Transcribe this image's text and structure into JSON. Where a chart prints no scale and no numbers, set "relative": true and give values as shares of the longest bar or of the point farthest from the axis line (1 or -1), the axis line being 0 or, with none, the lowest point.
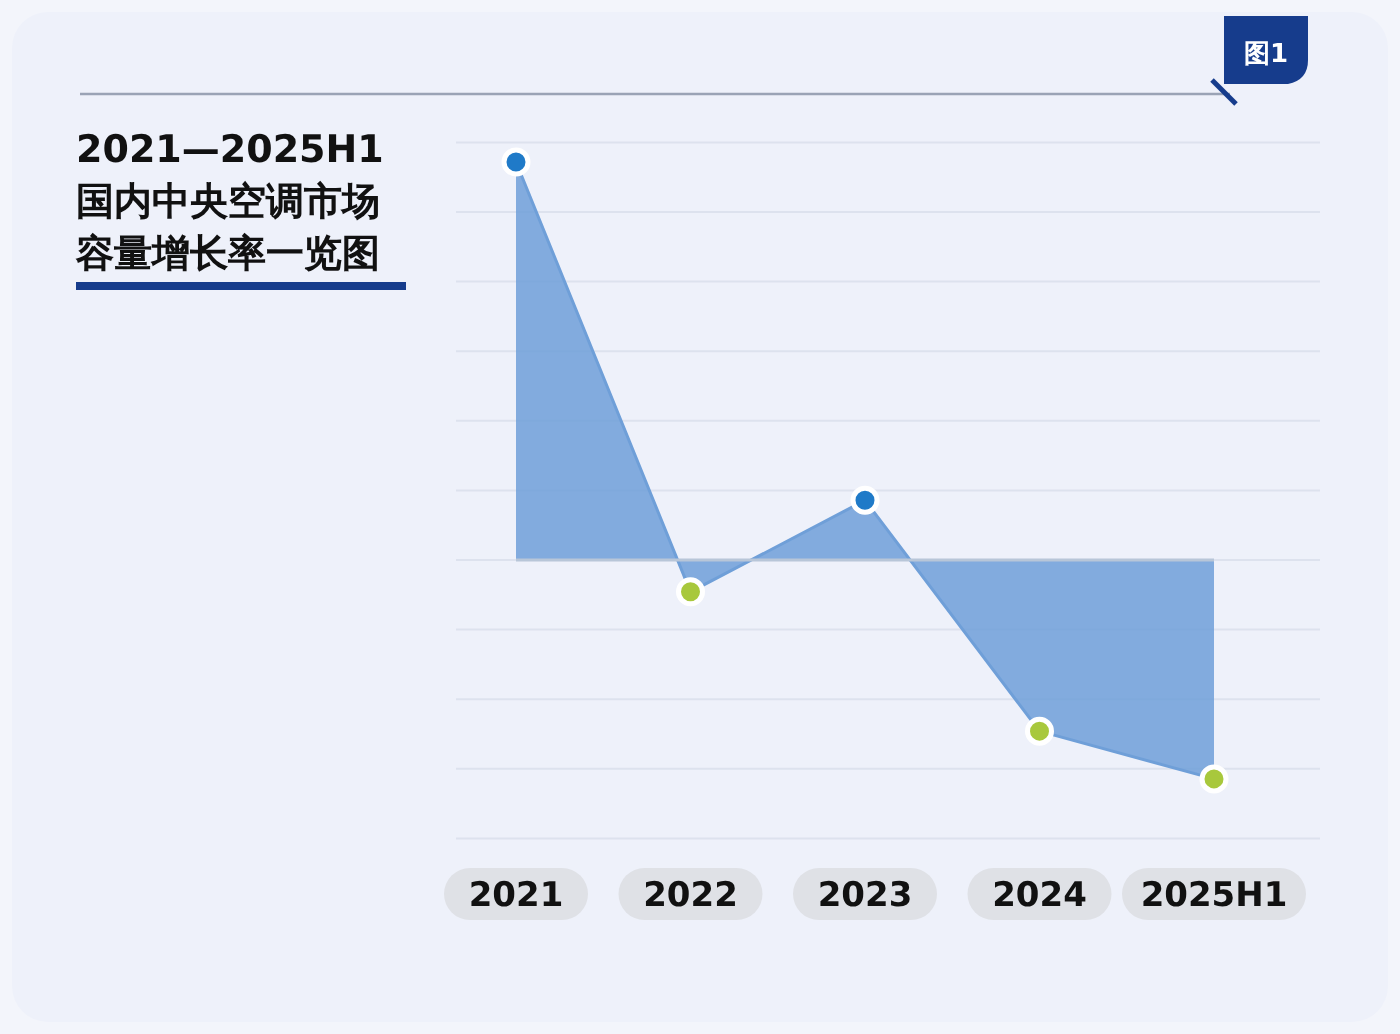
{
  "chart_data": {
    "type": "area",
    "title": "2021—2025H1 国内中央空调市场容量增长率一览图",
    "annotations": [
      "图1"
    ],
    "relative": true,
    "categories": [
      "2021",
      "2022",
      "2023",
      "2024",
      "2025H1"
    ],
    "series": [
      {
        "color": "#6f9fd8",
        "colors": [
          "#1f7ac8",
          "#a8c83c",
          "#1f7ac8",
          "#a8c83c",
          "#a8c83c"
        ],
        "values": [
          1,
          -0.08,
          0.15,
          -0.43,
          -0.55
        ]
      }
    ],
    "marker": "circle",
    "grid": "y"
  }
}
